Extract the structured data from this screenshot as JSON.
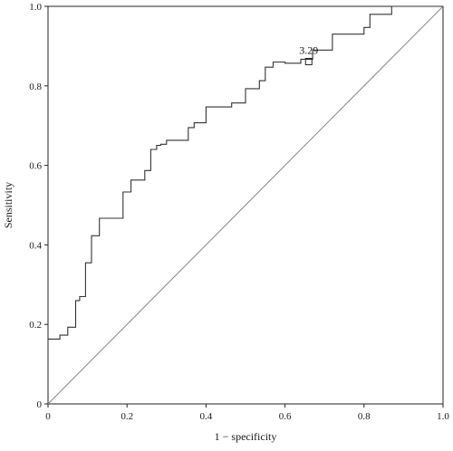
{
  "chart_data": {
    "type": "line",
    "title": "",
    "xlabel": "1 − specificity",
    "ylabel": "Sensitivity",
    "xlim": [
      0,
      1
    ],
    "ylim": [
      0,
      1
    ],
    "x_ticks": [
      "0",
      "0.2",
      "0.4",
      "0.6",
      "0.8",
      "1.0"
    ],
    "y_ticks": [
      "0",
      "0.2",
      "0.4",
      "0.6",
      "0.8",
      "1.0"
    ],
    "grid": false,
    "annotation": {
      "text": "3.29",
      "x": 0.66,
      "y": 0.86
    },
    "series": [
      {
        "x": [
          0,
          0.03,
          0.03,
          0.05,
          0.05,
          0.07,
          0.07,
          0.08,
          0.08,
          0.095,
          0.095,
          0.11,
          0.11,
          0.13,
          0.13,
          0.19,
          0.19,
          0.21,
          0.21,
          0.245,
          0.245,
          0.26,
          0.26,
          0.275,
          0.275,
          0.285,
          0.285,
          0.3,
          0.3,
          0.355,
          0.355,
          0.37,
          0.37,
          0.385,
          0.385,
          0.4,
          0.4,
          0.465,
          0.465,
          0.5,
          0.5,
          0.535,
          0.535,
          0.55,
          0.55,
          0.57,
          0.57,
          0.6,
          0.6,
          0.64,
          0.64,
          0.66,
          0.66,
          0.67,
          0.67,
          0.72,
          0.72,
          0.8,
          0.8,
          0.815,
          0.815,
          0.87,
          0.87,
          0.89,
          0.89,
          0.945,
          0.945,
          0.98,
          0.98,
          1.0
        ],
        "y": [
          0.163,
          0.163,
          0.173,
          0.173,
          0.193,
          0.193,
          0.26,
          0.26,
          0.27,
          0.27,
          0.355,
          0.355,
          0.423,
          0.423,
          0.467,
          0.467,
          0.533,
          0.533,
          0.563,
          0.563,
          0.587,
          0.587,
          0.64,
          0.64,
          0.65,
          0.65,
          0.653,
          0.653,
          0.663,
          0.663,
          0.695,
          0.695,
          0.707,
          0.707,
          0.707,
          0.707,
          0.747,
          0.747,
          0.757,
          0.757,
          0.793,
          0.793,
          0.813,
          0.813,
          0.847,
          0.847,
          0.86,
          0.86,
          0.857,
          0.857,
          0.867,
          0.867,
          0.867,
          0.867,
          0.89,
          0.89,
          0.93,
          0.93,
          0.947,
          0.947,
          0.98,
          0.98,
          1.0,
          1.0,
          1.0,
          1.0,
          1.0,
          1.0,
          1.0,
          1.0
        ]
      },
      {
        "x": [
          0,
          1
        ],
        "y": [
          0,
          1
        ]
      }
    ]
  }
}
